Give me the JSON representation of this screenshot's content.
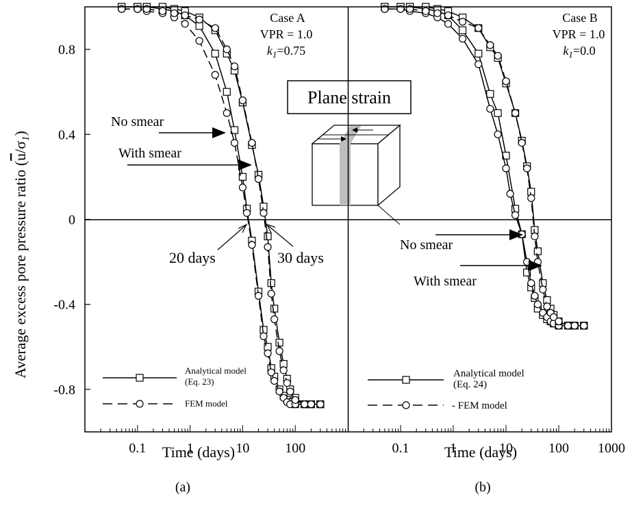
{
  "figure": {
    "ylabel_prefix": "Average excess pore pressure ratio (",
    "ylabel_u": "u",
    "ylabel_slash": "/σ",
    "ylabel_sub": "1",
    "ylabel_suffix": ")",
    "inset_label": "Plane strain"
  },
  "chart_data": [
    {
      "panel": "a",
      "type": "line",
      "sublabel": "(a)",
      "xlabel": "Time (days)",
      "xscale": "log",
      "xlim": [
        0.01,
        1000
      ],
      "ylim": [
        -1.0,
        1.0
      ],
      "yticks": [
        0.8,
        0.4,
        0,
        -0.4,
        -0.8
      ],
      "ytick_labels": [
        "0.8",
        "0.4",
        "0",
        "-0.4",
        "-0.8"
      ],
      "xticks": [
        0.1,
        1,
        10,
        100
      ],
      "xtick_labels": [
        "0.1",
        "1",
        "10",
        "100"
      ],
      "case_lines": [
        "Case A",
        "VPR = 1.0"
      ],
      "case_k_label": "k",
      "case_k_sub": "1",
      "case_k_value": "=0.75",
      "annotations": {
        "no_smear": "No smear",
        "with_smear": "With smear",
        "days20": "20 days",
        "days30": "30 days"
      },
      "legend": {
        "analytical": "Analytical model",
        "analytical_eq": "(Eq. 23)",
        "fem": "FEM model"
      },
      "series": [
        {
          "name": "Analytical model",
          "curve": "no smear",
          "marker": "square",
          "style": "solid",
          "x": [
            0.05,
            0.1,
            0.15,
            0.3,
            0.5,
            0.8,
            1.5,
            3,
            5,
            7,
            10,
            12,
            15,
            20,
            25,
            30,
            35,
            40,
            50,
            60,
            70,
            80,
            100,
            150,
            200,
            300
          ],
          "y": [
            1.0,
            1.0,
            1.0,
            0.99,
            0.98,
            0.96,
            0.91,
            0.78,
            0.6,
            0.42,
            0.2,
            0.05,
            -0.1,
            -0.34,
            -0.52,
            -0.6,
            -0.7,
            -0.74,
            -0.8,
            -0.83,
            -0.85,
            -0.86,
            -0.87,
            -0.87,
            -0.87,
            -0.87
          ]
        },
        {
          "name": "FEM model",
          "curve": "no smear",
          "marker": "circle",
          "style": "dashed",
          "x": [
            0.05,
            0.1,
            0.15,
            0.3,
            0.5,
            0.8,
            1.5,
            3,
            5,
            7,
            10,
            12,
            15,
            20,
            25,
            30,
            35,
            40,
            50,
            60,
            70,
            80,
            100,
            150,
            200,
            300
          ],
          "y": [
            0.99,
            0.99,
            0.98,
            0.97,
            0.95,
            0.92,
            0.84,
            0.68,
            0.5,
            0.36,
            0.15,
            0.03,
            -0.12,
            -0.36,
            -0.55,
            -0.63,
            -0.72,
            -0.76,
            -0.81,
            -0.84,
            -0.86,
            -0.87,
            -0.87,
            -0.87,
            -0.87,
            -0.87
          ]
        },
        {
          "name": "Analytical model",
          "curve": "with smear",
          "marker": "square",
          "style": "solid",
          "x": [
            0.05,
            0.1,
            0.15,
            0.3,
            0.5,
            0.8,
            1.5,
            3,
            5,
            7,
            10,
            15,
            20,
            25,
            30,
            35,
            40,
            50,
            60,
            70,
            80,
            100,
            150,
            200,
            300
          ],
          "y": [
            1.0,
            1.0,
            1.0,
            1.0,
            0.99,
            0.98,
            0.95,
            0.89,
            0.78,
            0.7,
            0.55,
            0.35,
            0.21,
            0.06,
            -0.08,
            -0.3,
            -0.42,
            -0.58,
            -0.68,
            -0.75,
            -0.8,
            -0.84,
            -0.87,
            -0.87,
            -0.87
          ]
        },
        {
          "name": "FEM model",
          "curve": "with smear",
          "marker": "circle",
          "style": "dashed",
          "x": [
            0.05,
            0.1,
            0.15,
            0.3,
            0.5,
            0.8,
            1.5,
            3,
            5,
            7,
            10,
            15,
            20,
            25,
            30,
            35,
            40,
            50,
            60,
            70,
            80,
            100,
            150,
            200,
            300
          ],
          "y": [
            0.99,
            0.99,
            0.99,
            0.98,
            0.97,
            0.96,
            0.94,
            0.9,
            0.8,
            0.72,
            0.56,
            0.36,
            0.19,
            0.03,
            -0.13,
            -0.35,
            -0.47,
            -0.62,
            -0.71,
            -0.77,
            -0.81,
            -0.85,
            -0.87,
            -0.87,
            -0.87
          ]
        }
      ]
    },
    {
      "panel": "b",
      "type": "line",
      "sublabel": "(b)",
      "xlabel": "Time (days)",
      "xscale": "log",
      "xlim": [
        0.01,
        1000
      ],
      "ylim": [
        -1.0,
        1.0
      ],
      "xticks": [
        0.1,
        1,
        10,
        100,
        1000
      ],
      "xtick_labels": [
        "0.1",
        "1",
        "10",
        "100",
        "1000"
      ],
      "case_lines": [
        "Case B",
        "VPR = 1.0"
      ],
      "case_k_label": "k",
      "case_k_sub": "1",
      "case_k_value": "=0.0",
      "annotations": {
        "no_smear": "No smear",
        "with_smear": "With smear"
      },
      "legend": {
        "analytical": "Analytical model",
        "analytical_eq": "(Eq. 24)",
        "fem": "- FEM model"
      },
      "series": [
        {
          "name": "Analytical model",
          "curve": "no smear",
          "marker": "square",
          "style": "solid",
          "x": [
            0.05,
            0.1,
            0.15,
            0.3,
            0.5,
            0.8,
            1.5,
            3,
            5,
            7,
            10,
            15,
            20,
            25,
            30,
            35,
            40,
            50,
            60,
            70,
            80,
            100,
            150,
            200,
            300
          ],
          "y": [
            1.0,
            1.0,
            1.0,
            0.99,
            0.98,
            0.96,
            0.89,
            0.78,
            0.59,
            0.5,
            0.3,
            0.05,
            -0.07,
            -0.25,
            -0.32,
            -0.37,
            -0.42,
            -0.45,
            -0.47,
            -0.48,
            -0.49,
            -0.5,
            -0.5,
            -0.5,
            -0.5
          ]
        },
        {
          "name": "FEM model",
          "curve": "no smear",
          "marker": "circle",
          "style": "solid",
          "x": [
            0.05,
            0.1,
            0.15,
            0.3,
            0.5,
            0.8,
            1.5,
            3,
            5,
            7,
            10,
            12,
            15,
            20,
            25,
            30,
            35,
            40,
            50,
            60,
            70,
            80,
            100,
            150,
            200,
            300
          ],
          "y": [
            0.99,
            0.99,
            0.98,
            0.97,
            0.95,
            0.92,
            0.85,
            0.73,
            0.52,
            0.4,
            0.24,
            0.12,
            0.02,
            -0.07,
            -0.2,
            -0.3,
            -0.36,
            -0.4,
            -0.44,
            -0.46,
            -0.48,
            -0.49,
            -0.5,
            -0.5,
            -0.5,
            -0.5
          ]
        },
        {
          "name": "Analytical model",
          "curve": "with smear",
          "marker": "square",
          "style": "solid",
          "x": [
            0.05,
            0.1,
            0.15,
            0.3,
            0.5,
            0.8,
            1.5,
            3,
            5,
            7,
            10,
            15,
            20,
            25,
            30,
            35,
            40,
            50,
            60,
            70,
            80,
            100,
            150,
            200,
            300
          ],
          "y": [
            1.0,
            1.0,
            1.0,
            1.0,
            0.99,
            0.98,
            0.95,
            0.9,
            0.81,
            0.76,
            0.64,
            0.5,
            0.37,
            0.25,
            0.13,
            -0.05,
            -0.15,
            -0.3,
            -0.38,
            -0.42,
            -0.45,
            -0.48,
            -0.5,
            -0.5,
            -0.5
          ]
        },
        {
          "name": "FEM model",
          "curve": "with smear",
          "marker": "circle",
          "style": "dashed",
          "x": [
            0.05,
            0.1,
            0.15,
            0.3,
            0.5,
            0.8,
            1.5,
            3,
            5,
            7,
            10,
            15,
            20,
            25,
            30,
            35,
            40,
            50,
            60,
            70,
            80,
            100,
            150,
            200,
            300
          ],
          "y": [
            0.99,
            0.99,
            0.99,
            0.98,
            0.97,
            0.96,
            0.93,
            0.9,
            0.82,
            0.77,
            0.65,
            0.5,
            0.36,
            0.24,
            0.1,
            -0.08,
            -0.2,
            -0.33,
            -0.41,
            -0.44,
            -0.46,
            -0.48,
            -0.5,
            -0.5,
            -0.5
          ]
        }
      ]
    }
  ]
}
